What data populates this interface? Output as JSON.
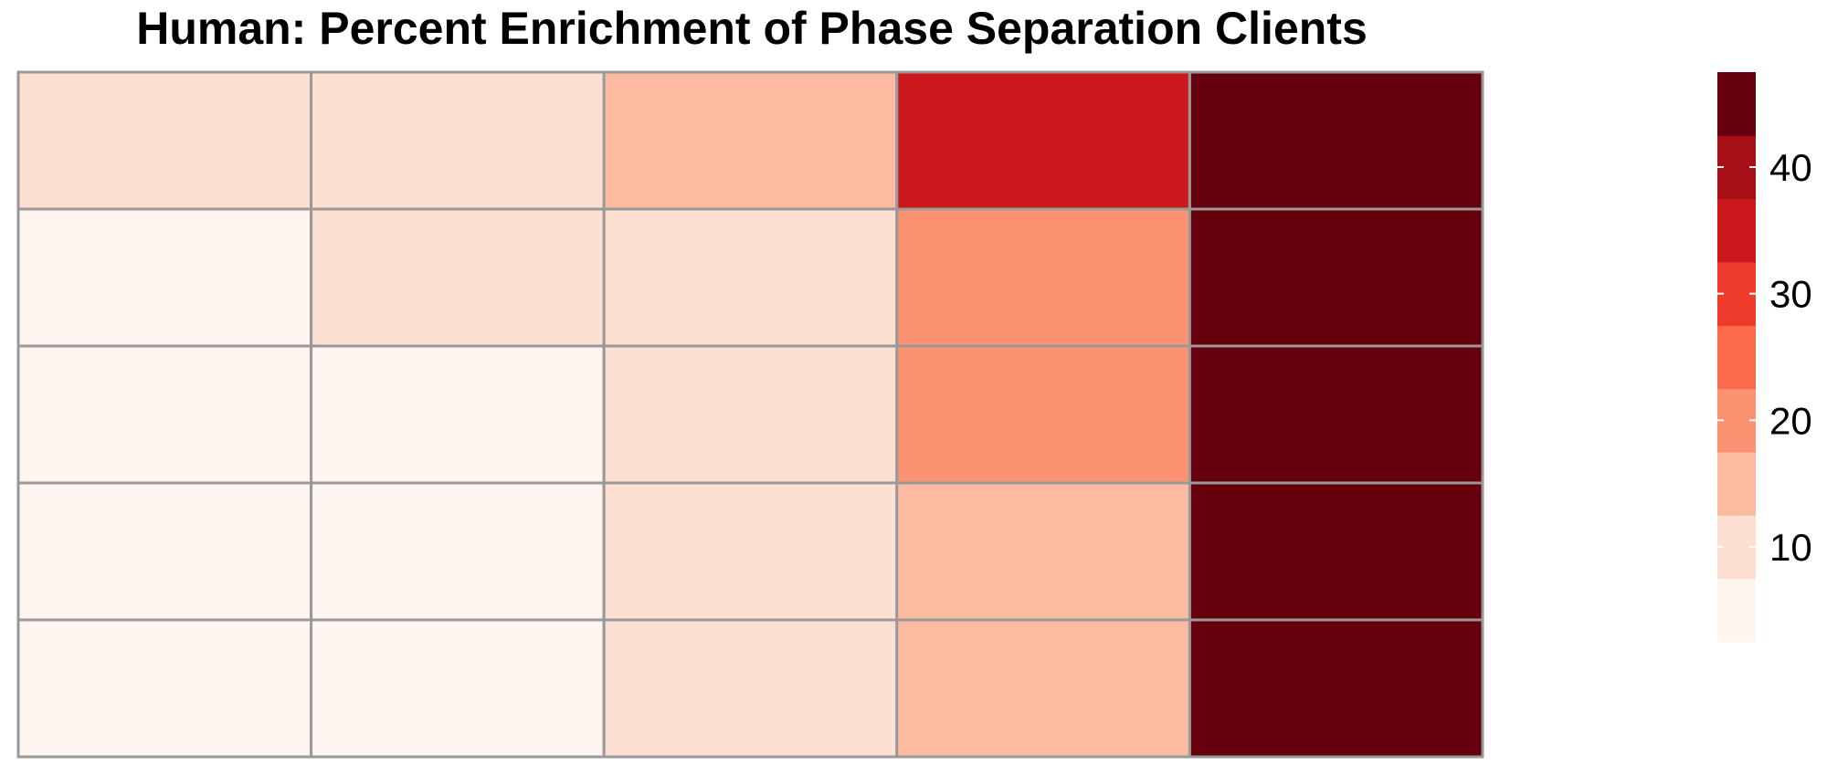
{
  "chart_data": {
    "type": "heatmap",
    "title": "Human: Percent Enrichment of Phase Separation Clients",
    "rows": 5,
    "columns": 5,
    "values": [
      [
        7,
        7,
        14,
        30,
        46
      ],
      [
        2,
        7,
        7,
        19,
        41
      ],
      [
        2,
        2,
        7,
        19,
        46
      ],
      [
        2,
        2,
        7,
        14,
        41
      ],
      [
        2,
        2,
        7,
        14,
        46
      ]
    ],
    "color_scale": {
      "bins": [
        0,
        5,
        10,
        15,
        20,
        25,
        30,
        35,
        40,
        45,
        50
      ],
      "colors": [
        "#FFF5F0",
        "#FEE0D2",
        "#FCBBA1",
        "#FC9272",
        "#FB6A4A",
        "#EF3B2C",
        "#CB181D",
        "#A50F15",
        "#67000D",
        "#67000D"
      ],
      "grid_color": "#999999"
    },
    "legend": {
      "placement": "right",
      "ticks": [
        "10",
        "20",
        "30",
        "40"
      ],
      "tick_values": [
        10,
        20,
        30,
        40
      ],
      "range": [
        2.5,
        47.5
      ],
      "colors": [
        "#FFF5F0",
        "#FEE0D2",
        "#FCBBA1",
        "#FC9272",
        "#FB6A4A",
        "#EF3B2C",
        "#CB181D",
        "#A50F15",
        "#67000D"
      ]
    }
  }
}
